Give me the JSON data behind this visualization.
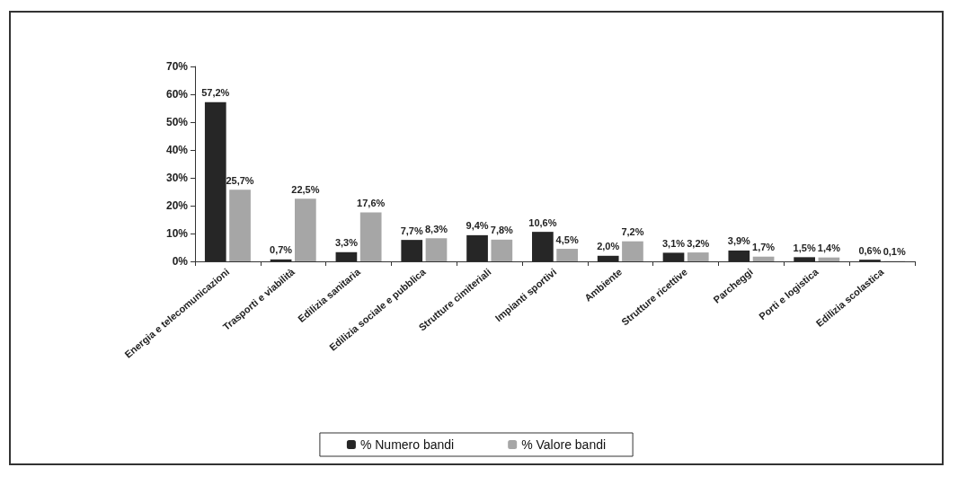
{
  "chart_data": {
    "type": "bar",
    "categories": [
      "Energia e telecomunicazioni",
      "Trasporti e viabilità",
      "Edilizia sanitaria",
      "Edilizia sociale e pubblica",
      "Strutture cimiteriali",
      "Impianti sportivi",
      "Ambiente",
      "Strutture ricettive",
      "Parcheggi",
      "Porti e logistica",
      "Edilizia scolastica"
    ],
    "series": [
      {
        "name": "% Numero bandi",
        "color": "#262626",
        "values": [
          57.2,
          0.7,
          3.3,
          7.7,
          9.4,
          10.6,
          2.0,
          3.1,
          3.9,
          1.5,
          0.6
        ],
        "value_labels": [
          "57,2%",
          "0,7%",
          "3,3%",
          "7,7%",
          "9,4%",
          "10,6%",
          "2,0%",
          "3,1%",
          "3,9%",
          "1,5%",
          "0,6%"
        ]
      },
      {
        "name": "% Valore bandi",
        "color": "#a6a6a6",
        "values": [
          25.7,
          22.5,
          17.6,
          8.3,
          7.8,
          4.5,
          7.2,
          3.2,
          1.7,
          1.4,
          0.1
        ],
        "value_labels": [
          "25,7%",
          "22,5%",
          "17,6%",
          "8,3%",
          "7,8%",
          "4,5%",
          "7,2%",
          "3,2%",
          "1,7%",
          "1,4%",
          "0,1%"
        ]
      }
    ],
    "ylim": [
      0,
      70
    ],
    "yticks": [
      {
        "value": 0,
        "label": "0%"
      },
      {
        "value": 10,
        "label": "10%"
      },
      {
        "value": 20,
        "label": "20%"
      },
      {
        "value": 30,
        "label": "30%"
      },
      {
        "value": 40,
        "label": "40%"
      },
      {
        "value": 50,
        "label": "50%"
      },
      {
        "value": 60,
        "label": "60%"
      },
      {
        "value": 70,
        "label": "70%"
      }
    ],
    "grid": false,
    "legend": "bottom"
  }
}
